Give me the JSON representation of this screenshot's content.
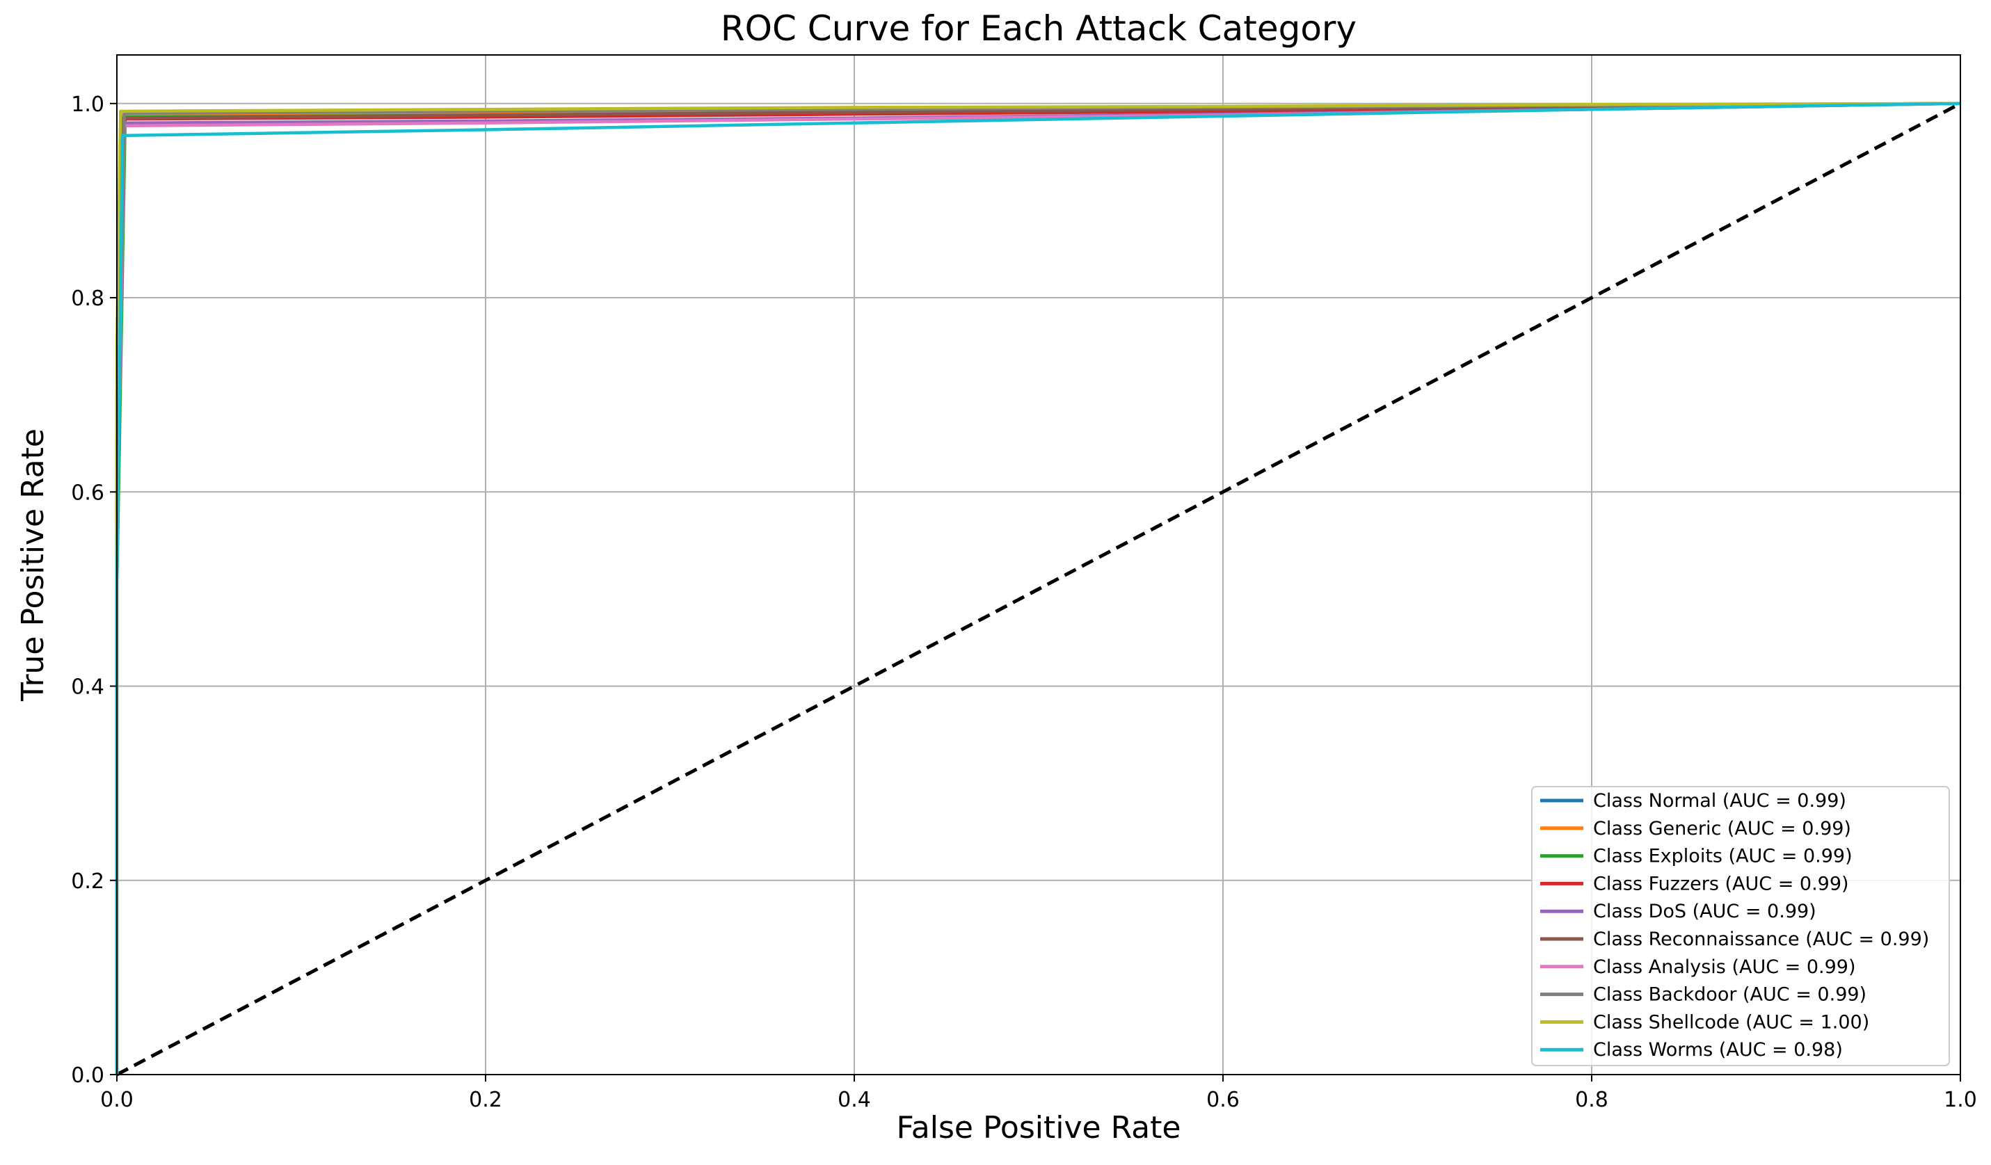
{
  "chart_data": {
    "type": "line",
    "title": "ROC Curve for Each Attack Category",
    "xlabel": "False Positive Rate",
    "ylabel": "True Positive Rate",
    "xlim": [
      0.0,
      1.0
    ],
    "ylim": [
      0.0,
      1.05
    ],
    "xticks": [
      "0.0",
      "0.2",
      "0.4",
      "0.6",
      "0.8",
      "1.0"
    ],
    "yticks": [
      "0.0",
      "0.2",
      "0.4",
      "0.6",
      "0.8",
      "1.0"
    ],
    "grid": true,
    "legend_position": "lower right",
    "diagonal_reference": {
      "x": [
        0.0,
        1.0
      ],
      "y": [
        0.0,
        1.0
      ],
      "color": "#000000",
      "style": "dashed"
    },
    "series": [
      {
        "name": "Class Normal (AUC = 0.99)",
        "color": "#1f77b4",
        "x": [
          0.0,
          0.0,
          0.0035,
          0.1,
          0.2,
          0.4,
          0.6,
          0.8,
          1.0
        ],
        "y": [
          0.0,
          0.6,
          0.985,
          0.987,
          0.989,
          0.992,
          0.995,
          0.998,
          1.0
        ]
      },
      {
        "name": "Class Generic (AUC = 0.99)",
        "color": "#ff7f0e",
        "x": [
          0.0,
          0.0,
          0.003,
          0.2,
          0.4,
          0.6,
          0.8,
          1.0
        ],
        "y": [
          0.0,
          0.7,
          0.988,
          0.99,
          0.993,
          0.995,
          0.998,
          1.0
        ]
      },
      {
        "name": "Class Exploits (AUC = 0.99)",
        "color": "#2ca02c",
        "x": [
          0.0,
          0.0,
          0.0045,
          0.2,
          0.4,
          0.6,
          0.8,
          1.0
        ],
        "y": [
          0.0,
          0.5,
          0.986,
          0.988,
          0.991,
          0.994,
          0.997,
          1.0
        ]
      },
      {
        "name": "Class Fuzzers (AUC = 0.99)",
        "color": "#d62728",
        "x": [
          0.0,
          0.0,
          0.0035,
          0.2,
          0.4,
          0.6,
          0.8,
          1.0
        ],
        "y": [
          0.0,
          0.6,
          0.984,
          0.986,
          0.989,
          0.992,
          0.996,
          1.0
        ]
      },
      {
        "name": "Class DoS (AUC = 0.99)",
        "color": "#9467bd",
        "x": [
          0.0,
          0.0,
          0.004,
          0.2,
          0.4,
          0.6,
          0.8,
          1.0
        ],
        "y": [
          0.0,
          0.55,
          0.98,
          0.982,
          0.985,
          0.989,
          0.994,
          1.0
        ]
      },
      {
        "name": "Class Reconnaissance (AUC = 0.99)",
        "color": "#8c564b",
        "x": [
          0.0,
          0.0,
          0.003,
          0.2,
          0.4,
          0.6,
          0.8,
          1.0
        ],
        "y": [
          0.0,
          0.65,
          0.985,
          0.988,
          0.991,
          0.994,
          0.997,
          1.0
        ]
      },
      {
        "name": "Class Analysis (AUC = 0.99)",
        "color": "#e377c2",
        "x": [
          0.0,
          0.0,
          0.004,
          0.2,
          0.4,
          0.6,
          0.8,
          1.0
        ],
        "y": [
          0.0,
          0.55,
          0.977,
          0.98,
          0.984,
          0.988,
          0.994,
          1.0
        ]
      },
      {
        "name": "Class Backdoor (AUC = 0.99)",
        "color": "#7f7f7f",
        "x": [
          0.0,
          0.0,
          0.004,
          0.2,
          0.4,
          0.6,
          0.8,
          1.0
        ],
        "y": [
          0.0,
          0.6,
          0.99,
          0.992,
          0.994,
          0.996,
          0.998,
          1.0
        ]
      },
      {
        "name": "Class Shellcode (AUC = 1.00)",
        "color": "#bcbd22",
        "x": [
          0.0,
          0.0,
          0.002,
          0.2,
          0.4,
          0.6,
          0.8,
          1.0
        ],
        "y": [
          0.0,
          0.75,
          0.992,
          0.994,
          0.996,
          0.997,
          0.999,
          1.0
        ]
      },
      {
        "name": "Class Worms (AUC = 0.98)",
        "color": "#17becf",
        "x": [
          0.0,
          0.0,
          0.003,
          0.2,
          0.4,
          0.6,
          0.8,
          1.0
        ],
        "y": [
          0.0,
          0.5,
          0.967,
          0.973,
          0.98,
          0.987,
          0.994,
          1.0
        ]
      }
    ]
  }
}
